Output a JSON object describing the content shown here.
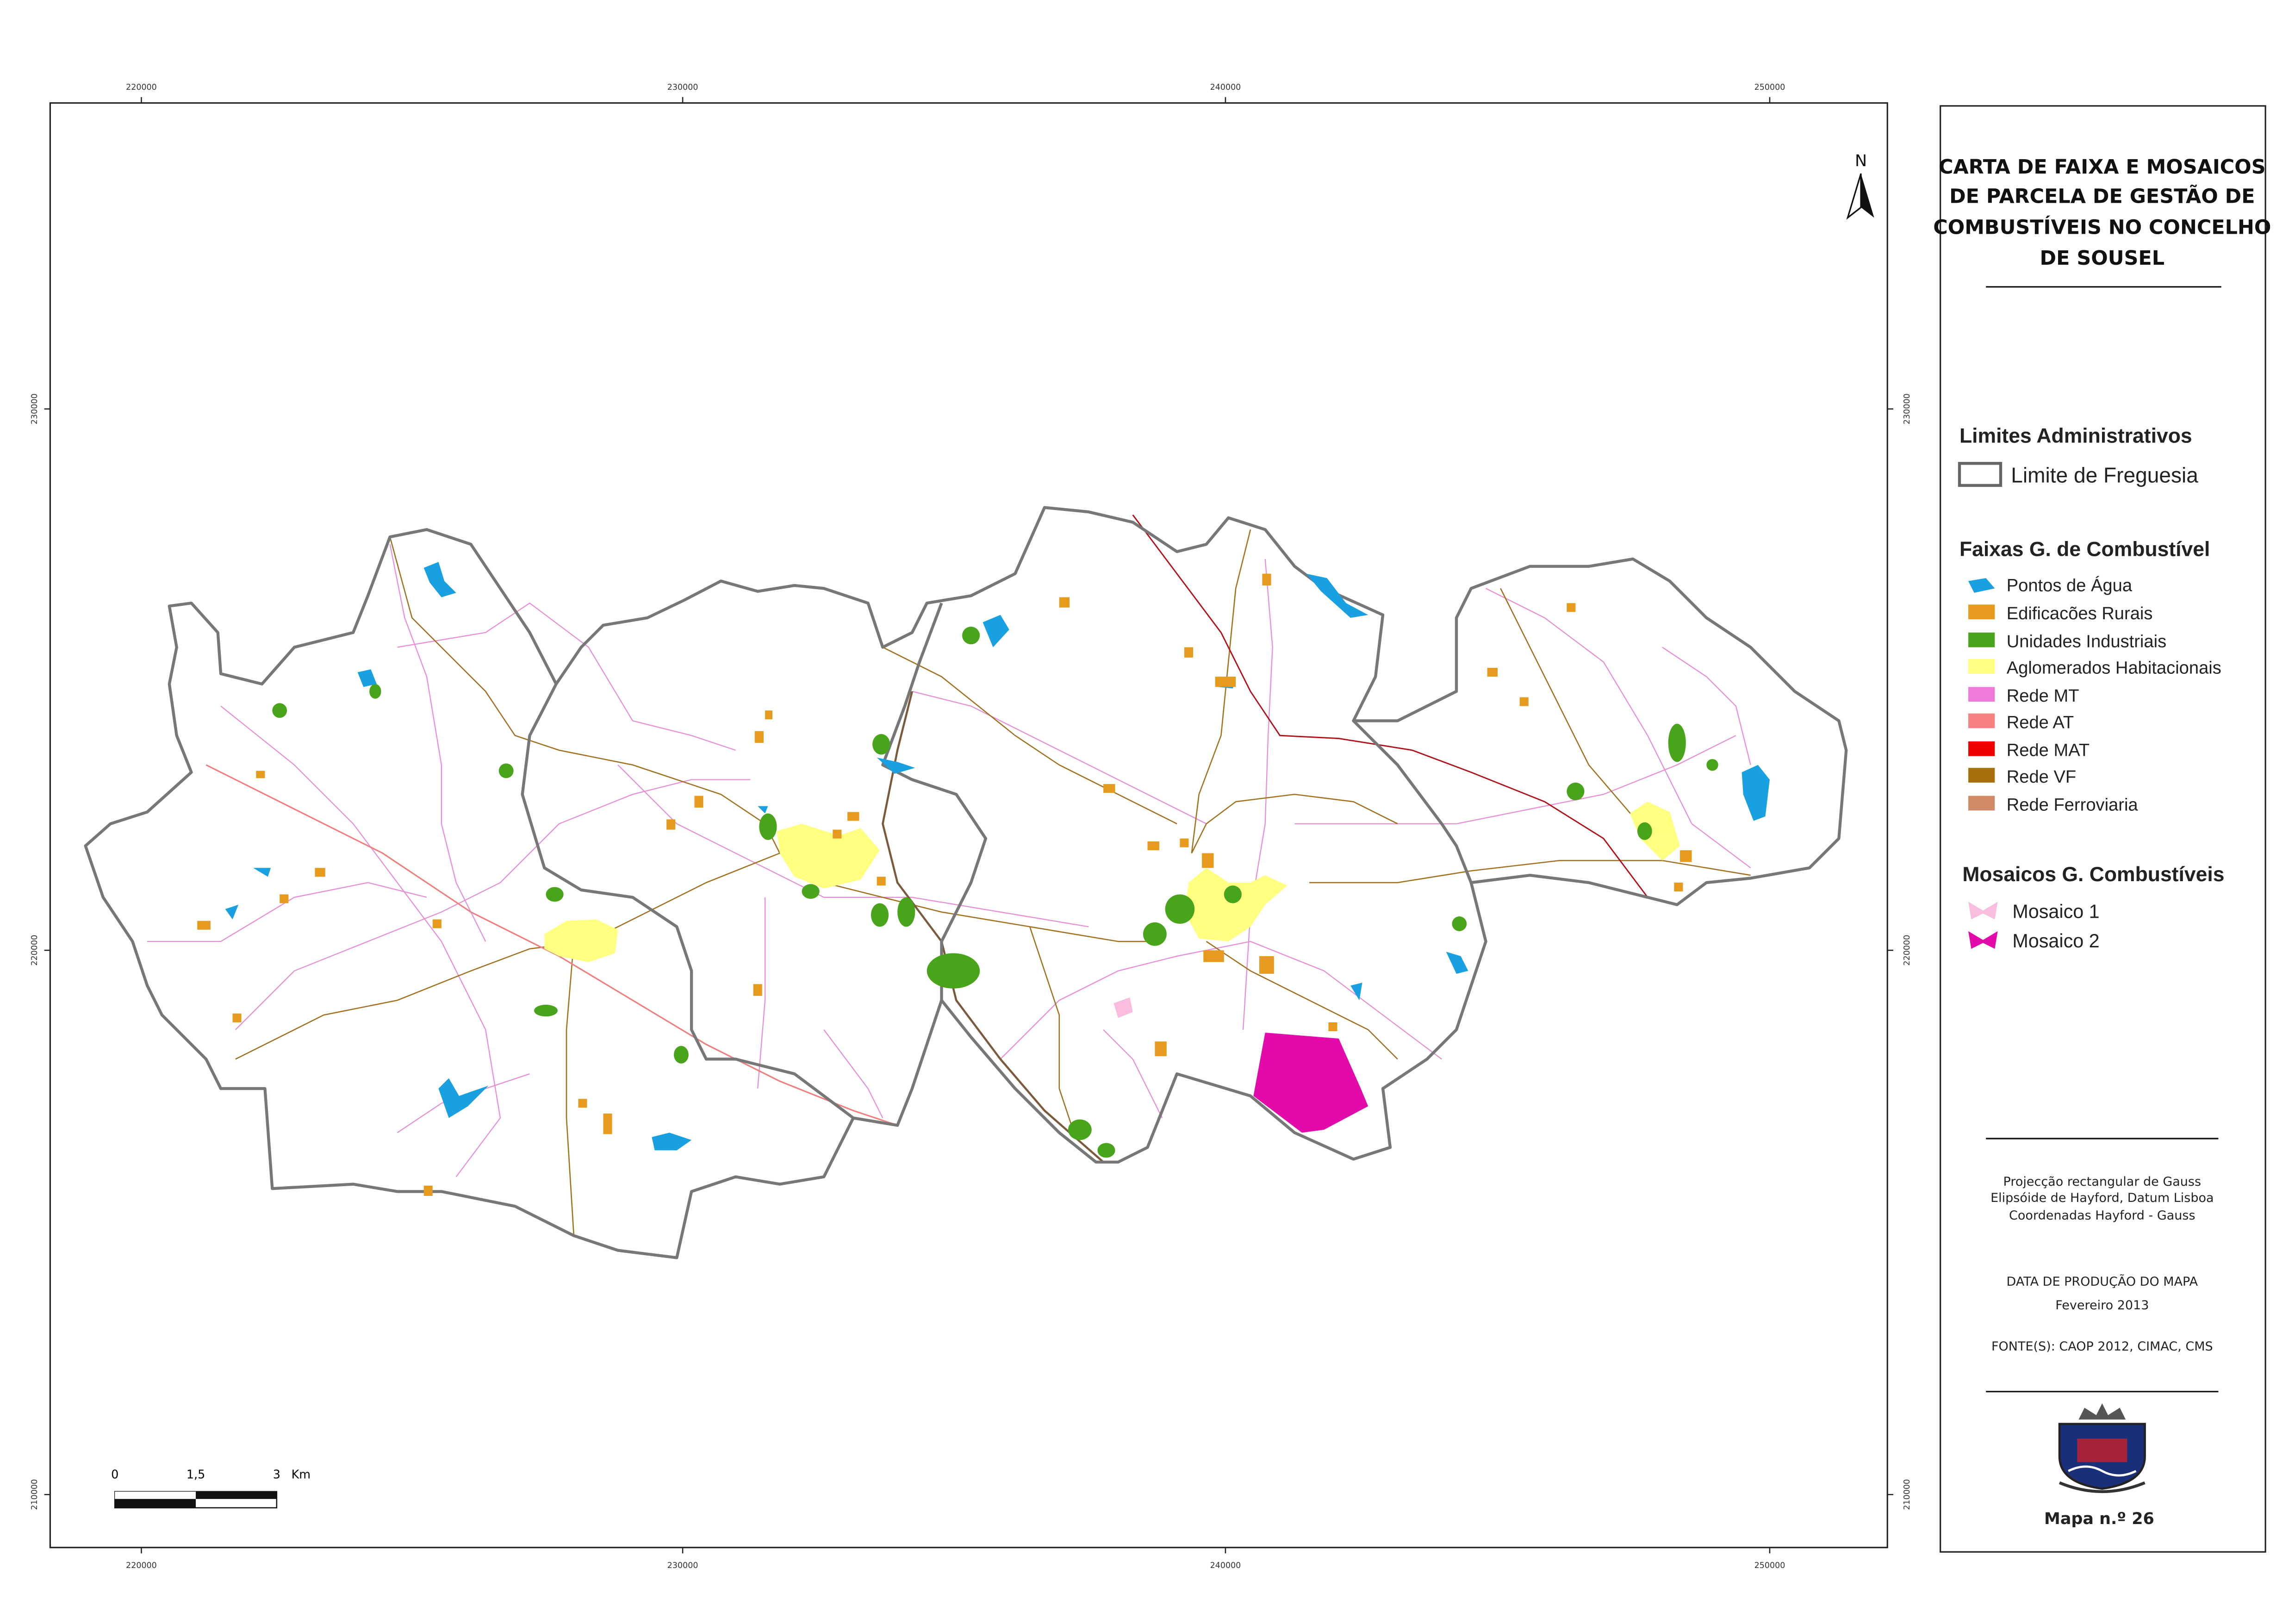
{
  "map": {
    "x_labels": [
      "220000",
      "230000",
      "240000",
      "250000"
    ],
    "y_labels": [
      "230000",
      "220000",
      "210000"
    ],
    "north": "N",
    "scale": {
      "labels": [
        "0",
        "1,5",
        "3"
      ],
      "unit": "Km"
    }
  },
  "legend": {
    "title": [
      "CARTA DE FAIXA E MOSAICOS",
      "DE PARCELA DE GESTÃO DE",
      "COMBUSTÍVEIS NO CONCELHO",
      "DE SOUSEL"
    ],
    "sections": [
      {
        "title": "Limites Administrativos",
        "items": [
          "Limite de Freguesia"
        ]
      },
      {
        "title": "Faixas G. de Combustível",
        "items": [
          "Pontos de Água",
          "Edificacões Rurais",
          "Unidades Industriais",
          "Aglomerados Habitacionais",
          "Rede MT",
          "Rede AT",
          "Rede MAT",
          "Rede VF",
          "Rede Ferroviaria"
        ]
      },
      {
        "title": "Mosaicos G. Combustíveis",
        "items": [
          "Mosaico 1",
          "Mosaico 2"
        ]
      }
    ],
    "projection": [
      "Projecção rectangular de Gauss",
      "Elipsóide de Hayford, Datum Lisboa",
      "Coordenadas Hayford - Gauss"
    ],
    "production": [
      "DATA DE PRODUÇÃO DO MAPA",
      "Fevereiro 2013"
    ],
    "sources": "FONTE(S): CAOP 2012, CIMAC, CMS",
    "map_number": "Mapa n.º 26"
  }
}
